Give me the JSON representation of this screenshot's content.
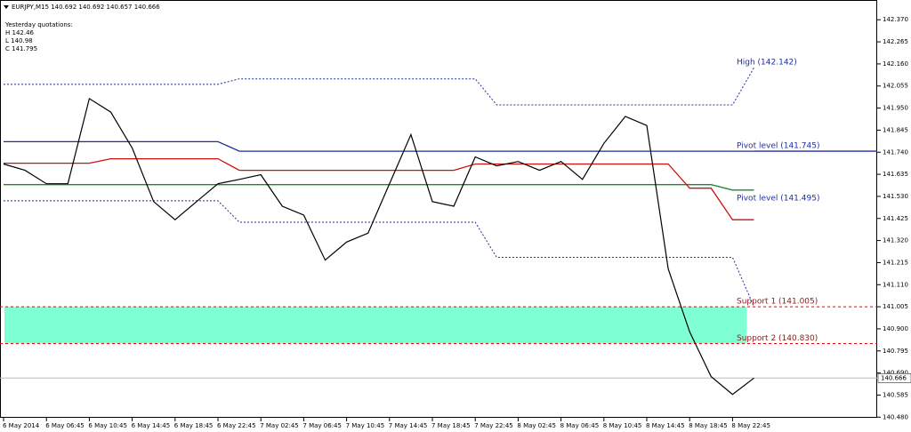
{
  "chart_data": {
    "type": "line",
    "symbol_info": "EURJPY,M15  140.692 140.692 140.657 140.666",
    "yesterday": {
      "title": "Yesterday quotations:",
      "high": "H 142.46",
      "low": "L 140.98",
      "close": "C 141.795"
    },
    "categories": [
      "6 May 2014",
      null,
      "6 May 06:45",
      null,
      "6 May 10:45",
      null,
      "6 May 14:45",
      null,
      "6 May 18:45",
      null,
      "6 May 22:45",
      null,
      "7 May 02:45",
      null,
      "7 May 06:45",
      null,
      "7 May 10:45",
      null,
      "7 May 14:45",
      null,
      "7 May 18:45",
      null,
      "7 May 22:45",
      null,
      "8 May 02:45",
      null,
      "8 May 06:45",
      null,
      "8 May 10:45",
      null,
      "8 May 14:45",
      null,
      "8 May 18:45",
      null,
      "8 May 22:45",
      null
    ],
    "series": [
      {
        "name": "EURJPY",
        "color": "#000000",
        "values": [
          141.684,
          141.654,
          141.59,
          141.59,
          141.995,
          141.931,
          141.76,
          141.505,
          141.419,
          141.505,
          141.59,
          141.611,
          141.633,
          141.483,
          141.441,
          141.227,
          141.313,
          141.355,
          141.59,
          141.824,
          141.505,
          141.483,
          141.718,
          141.675,
          141.696,
          141.654,
          141.696,
          141.611,
          141.782,
          141.91,
          141.867,
          141.185,
          140.886,
          140.673,
          140.588,
          140.666
        ]
      },
      {
        "color": "#1f2f9a",
        "style": "solid",
        "values": [
          141.79,
          141.79,
          141.79,
          141.79,
          141.79,
          141.79,
          141.79,
          141.79,
          141.79,
          141.79,
          141.79,
          141.745,
          141.745,
          141.745,
          141.745,
          141.745,
          141.745,
          141.745,
          141.745,
          141.745,
          141.745,
          141.745,
          141.745,
          141.745,
          141.745,
          141.745,
          141.745,
          141.745,
          141.745,
          141.745,
          141.745,
          141.745,
          141.745,
          141.745,
          141.745,
          141.745
        ]
      },
      {
        "color": "#cc1111",
        "style": "solid",
        "values": [
          141.688,
          141.688,
          141.688,
          141.688,
          141.688,
          141.709,
          141.709,
          141.709,
          141.709,
          141.709,
          141.709,
          141.654,
          141.654,
          141.654,
          141.654,
          141.654,
          141.654,
          141.654,
          141.654,
          141.654,
          141.654,
          141.654,
          141.684,
          141.684,
          141.684,
          141.684,
          141.684,
          141.684,
          141.684,
          141.684,
          141.684,
          141.684,
          141.569,
          141.569,
          141.419,
          141.419
        ]
      },
      {
        "color": "#1a8a2a",
        "style": "solid",
        "values": [
          141.586,
          141.586,
          141.586,
          141.586,
          141.586,
          141.586,
          141.586,
          141.586,
          141.586,
          141.586,
          141.586,
          141.586,
          141.586,
          141.586,
          141.586,
          141.586,
          141.586,
          141.586,
          141.586,
          141.586,
          141.586,
          141.586,
          141.586,
          141.586,
          141.586,
          141.586,
          141.586,
          141.586,
          141.586,
          141.586,
          141.586,
          141.586,
          141.586,
          141.586,
          141.56,
          141.56
        ]
      },
      {
        "color": "#1f2f9a",
        "style": "dashed",
        "values": [
          142.063,
          142.063,
          142.063,
          142.063,
          142.063,
          142.063,
          142.063,
          142.063,
          142.063,
          142.063,
          142.063,
          142.089,
          142.089,
          142.089,
          142.089,
          142.089,
          142.089,
          142.089,
          142.089,
          142.089,
          142.089,
          142.089,
          142.089,
          141.965,
          141.965,
          141.965,
          141.965,
          141.965,
          141.965,
          141.965,
          141.965,
          141.965,
          141.965,
          141.965,
          141.965,
          142.142
        ]
      },
      {
        "color": "#1f2f9a",
        "style": "dashed",
        "values": [
          141.509,
          141.509,
          141.509,
          141.509,
          141.509,
          141.509,
          141.509,
          141.509,
          141.509,
          141.509,
          141.509,
          141.407,
          141.407,
          141.407,
          141.407,
          141.407,
          141.407,
          141.407,
          141.407,
          141.407,
          141.407,
          141.407,
          141.407,
          141.24,
          141.24,
          141.24,
          141.24,
          141.24,
          141.24,
          141.24,
          141.24,
          141.24,
          141.24,
          141.24,
          141.24,
          141.005
        ]
      }
    ],
    "zone": {
      "from": 140.83,
      "to": 141.005,
      "color": "#7fffd4"
    },
    "support_lines": [
      {
        "value": 141.005,
        "color": "#cc1111"
      },
      {
        "value": 140.83,
        "color": "#cc1111"
      }
    ],
    "annotations": [
      {
        "label": "High (142.142)",
        "value": 142.142,
        "color": "#1f2f9a"
      },
      {
        "label": "Pivot level (141.745)",
        "value": 141.745,
        "color": "#1f2f9a"
      },
      {
        "label": "Pivot level (141.495)",
        "value": 141.495,
        "color": "#1f2f9a"
      },
      {
        "label": "Support 1 (141.005)",
        "value": 141.005,
        "color": "#8b1a1a"
      },
      {
        "label": "Support 2 (140.830)",
        "value": 140.83,
        "color": "#8b1a1a"
      }
    ],
    "last_price": 140.666,
    "ylim": [
      140.477,
      142.464
    ],
    "yticks": [
      {
        "value": 142.37,
        "label": "142.370"
      },
      142.265,
      {
        "value": 142.16,
        "label": "142.160"
      },
      142.055,
      {
        "value": 141.95,
        "label": "141.950"
      },
      141.845,
      {
        "value": 141.74,
        "label": "141.740"
      },
      141.635,
      {
        "value": 141.53,
        "label": "141.530"
      },
      141.425,
      {
        "value": 141.32,
        "label": "141.320"
      },
      141.215,
      {
        "value": 141.11,
        "label": "141.110"
      },
      141.005,
      {
        "value": 140.9,
        "label": "140.900"
      },
      140.795,
      {
        "value": 140.69,
        "label": "140.690"
      },
      140.585,
      {
        "value": 140.48,
        "label": "140.480"
      }
    ]
  }
}
